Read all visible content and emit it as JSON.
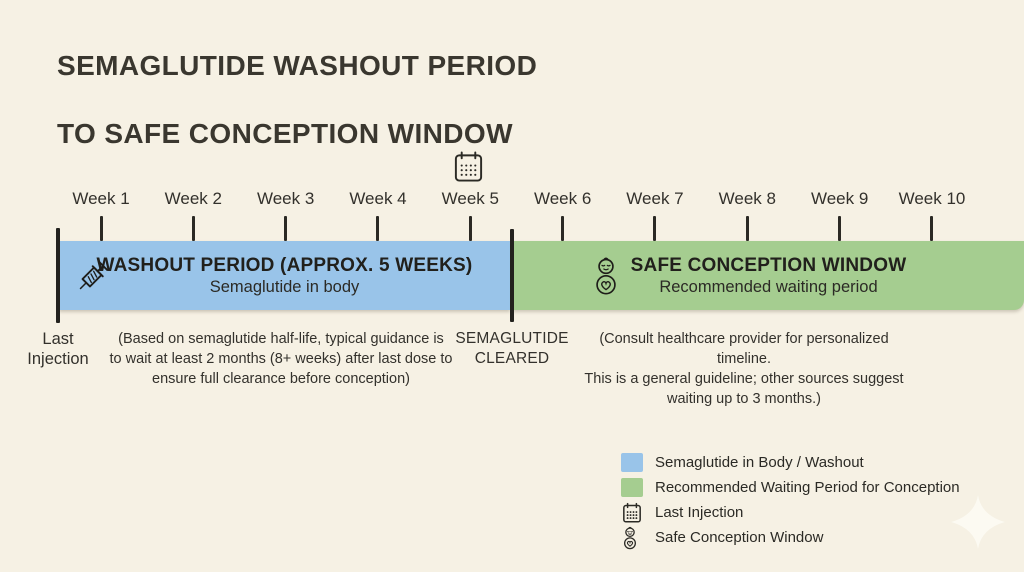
{
  "colors": {
    "background": "#f6f1e4",
    "washout": "#99c4e9",
    "conception": "#a5cd90",
    "ink": "#33312c"
  },
  "title": {
    "line1": "SEMAGLUTIDE WASHOUT PERIOD",
    "line2": "TO SAFE CONCEPTION WINDOW"
  },
  "timeline": {
    "weeks": [
      "Week 1",
      "Week 2",
      "Week 3",
      "Week 4",
      "Week 5",
      "Week 6",
      "Week 7",
      "Week 8",
      "Week 9",
      "Week 10"
    ],
    "washout_weeks_approx": 5,
    "cleared_marker_between": [
      "Week 5",
      "Week 6"
    ]
  },
  "bars": {
    "washout": {
      "title": "WASHOUT PERIOD (APPROX. 5 WEEKS)",
      "subtitle": "Semaglutide in body",
      "icon": "syringe-icon"
    },
    "conception": {
      "title": "SAFE CONCEPTION WINDOW",
      "subtitle": "Recommended waiting period",
      "icon": "baby-icon"
    }
  },
  "annotations": {
    "last_injection": [
      "Last",
      "Injection"
    ],
    "washout_note": [
      "(Based on semaglutide half-life, typical guidance is",
      "to wait at least 2 months (8+ weeks) after last dose to",
      "ensure full clearance before conception)"
    ],
    "cleared": [
      "SEMAGLUTIDE",
      "CLEARED"
    ],
    "conception_note": [
      "(Consult healthcare provider for personalized timeline.",
      "This is a general guideline; other sources suggest",
      "waiting up to 3 months.)"
    ]
  },
  "legend": {
    "items": [
      {
        "icon": "swatch-washout",
        "label": "Semaglutide in Body / Washout"
      },
      {
        "icon": "swatch-conception",
        "label": "Recommended Waiting Period for Conception"
      },
      {
        "icon": "calendar-icon",
        "label": "Last Injection"
      },
      {
        "icon": "baby-icon",
        "label": "Safe Conception Window"
      }
    ]
  }
}
